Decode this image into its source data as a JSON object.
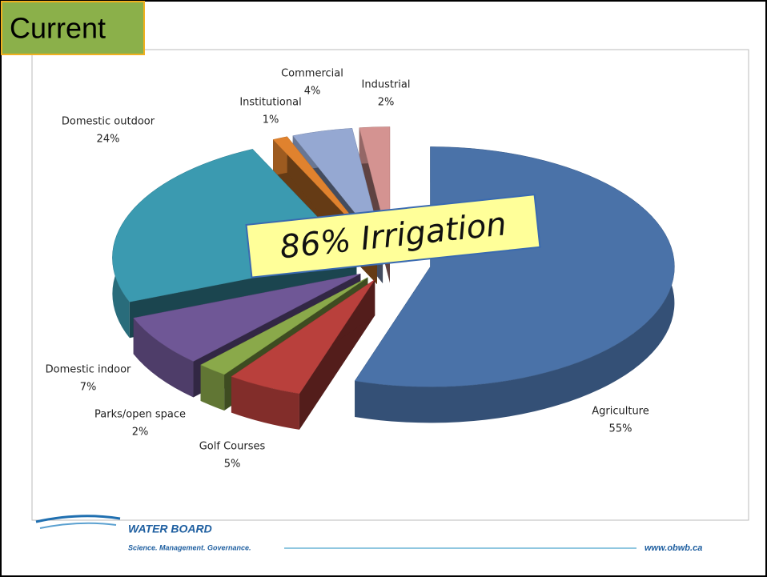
{
  "header": {
    "title": "Current"
  },
  "callout": "86% Irrigation",
  "chart_data": {
    "type": "pie",
    "categories": [
      "Agriculture",
      "Golf Courses",
      "Parks/open space",
      "Domestic indoor",
      "Domestic outdoor",
      "Institutional",
      "Commercial",
      "Industrial"
    ],
    "values": [
      55,
      5,
      2,
      7,
      24,
      1,
      4,
      2
    ],
    "value_labels": [
      "55%",
      "5%",
      "2%",
      "7%",
      "24%",
      "1%",
      "4%",
      "2%"
    ],
    "colors": [
      "#4a72a8",
      "#b9403c",
      "#8aa94a",
      "#6f5796",
      "#3b9ab0",
      "#e0822e",
      "#95a8d2",
      "#d49391"
    ]
  },
  "footer": {
    "org": "WATER BOARD",
    "tagline": "Science. Management. Governance.",
    "url": "www.obwb.ca"
  }
}
